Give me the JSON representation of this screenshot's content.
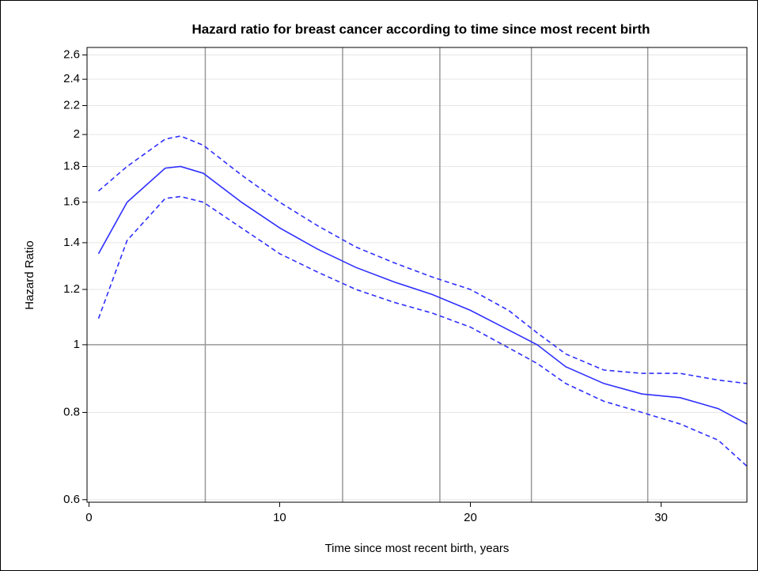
{
  "chart_data": {
    "type": "line",
    "title": "Hazard ratio for breast cancer according to time since most recent birth",
    "x_label": "Time since most recent birth, years",
    "y_label": "Hazard Ratio",
    "x": [
      0.5,
      2,
      4,
      4.8,
      6,
      8,
      10,
      12,
      14,
      16,
      18,
      20,
      22,
      23.5,
      25,
      27,
      29,
      31,
      33,
      34.5
    ],
    "series": [
      {
        "color": "#2f2fff",
        "dashed": false,
        "values": [
          1.35,
          1.6,
          1.79,
          1.8,
          1.76,
          1.6,
          1.47,
          1.37,
          1.29,
          1.23,
          1.18,
          1.12,
          1.05,
          1.0,
          0.93,
          0.88,
          0.85,
          0.84,
          0.81,
          0.77
        ]
      },
      {
        "color": "#2f2fff",
        "dashed": true,
        "values": [
          1.66,
          1.8,
          1.97,
          1.99,
          1.93,
          1.75,
          1.6,
          1.48,
          1.38,
          1.31,
          1.25,
          1.2,
          1.12,
          1.04,
          0.97,
          0.92,
          0.91,
          0.91,
          0.89,
          0.88
        ]
      },
      {
        "color": "#2f2fff",
        "dashed": true,
        "values": [
          1.09,
          1.41,
          1.62,
          1.63,
          1.6,
          1.47,
          1.35,
          1.27,
          1.2,
          1.15,
          1.11,
          1.06,
          0.99,
          0.94,
          0.88,
          0.83,
          0.8,
          0.77,
          0.73,
          0.67
        ]
      }
    ],
    "xlim": [
      -0.1,
      34.5
    ],
    "xticks": [
      0,
      10,
      20,
      30
    ],
    "ylim": [
      0.595,
      2.665
    ],
    "yticks": [
      0.6,
      0.8,
      1,
      1.2,
      1.4,
      1.6,
      1.8,
      2,
      2.2,
      2.4,
      2.6
    ],
    "y_log": true,
    "grid": true,
    "reference_lines_x": [
      6.1,
      13.3,
      18.4,
      23.2,
      29.3
    ],
    "reference_line_y": 1
  }
}
